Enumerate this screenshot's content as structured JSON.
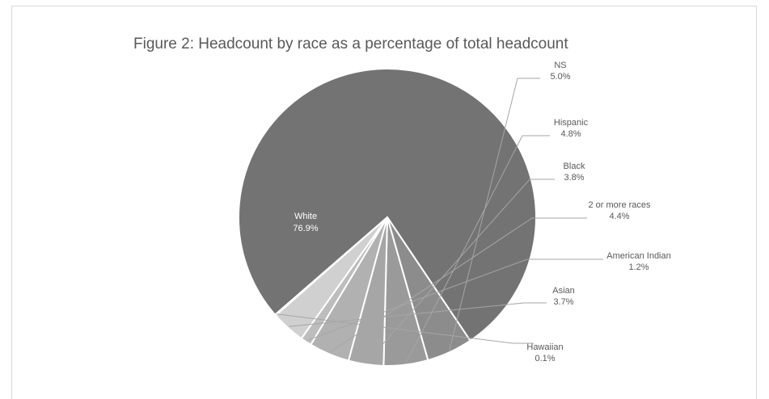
{
  "chart_data": {
    "type": "pie",
    "title": "Figure 2: Headcount by race as a percentage of total headcount",
    "slices": [
      {
        "label": "White",
        "value": 76.9,
        "value_text": "76.9%",
        "color": "#737373"
      },
      {
        "label": "NS",
        "value": 5.0,
        "value_text": "5.0%",
        "color": "#8c8c8c"
      },
      {
        "label": "Hispanic",
        "value": 4.8,
        "value_text": "4.8%",
        "color": "#9a9a9a"
      },
      {
        "label": "Black",
        "value": 3.8,
        "value_text": "3.8%",
        "color": "#a6a6a6"
      },
      {
        "label": "2 or more races",
        "value": 4.4,
        "value_text": "4.4%",
        "color": "#b1b1b1"
      },
      {
        "label": "American Indian",
        "value": 1.2,
        "value_text": "1.2%",
        "color": "#bdbdbd"
      },
      {
        "label": "Asian",
        "value": 3.7,
        "value_text": "3.7%",
        "color": "#d0d0d0"
      },
      {
        "label": "Hawaiian",
        "value": 0.1,
        "value_text": "0.1%",
        "color": "#dcdcdc"
      }
    ],
    "legend": "none",
    "data_labels": "outside-with-leader-lines"
  }
}
